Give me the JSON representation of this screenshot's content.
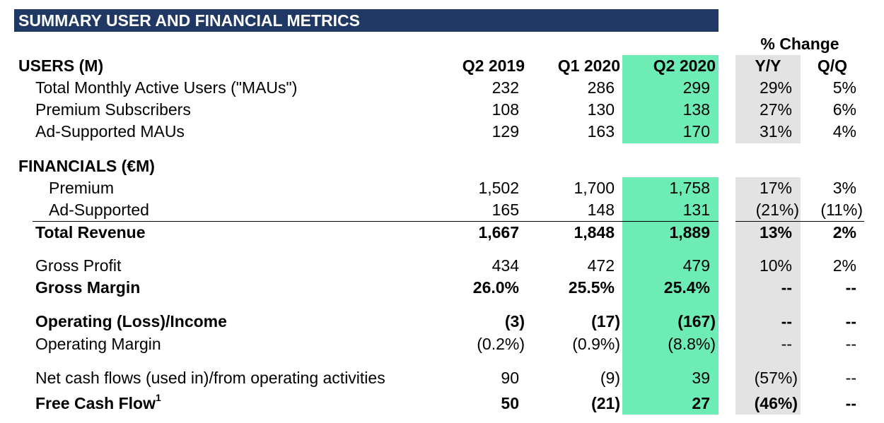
{
  "title": "SUMMARY USER AND FINANCIAL METRICS",
  "pct_change_header": "% Change",
  "headers": {
    "section_users": "USERS (M)",
    "q2_2019": "Q2 2019",
    "q1_2020": "Q1 2020",
    "q2_2020": "Q2 2020",
    "yy": "Y/Y",
    "qq": "Q/Q"
  },
  "users_rows": [
    {
      "label": "Total Monthly Active Users (\"MAUs\")",
      "q2_2019": "232",
      "q1_2020": "286",
      "q2_2020": "299",
      "yy": "29%",
      "qq": "5%"
    },
    {
      "label": "Premium Subscribers",
      "q2_2019": "108",
      "q1_2020": "130",
      "q2_2020": "138",
      "yy": "27%",
      "qq": "6%"
    },
    {
      "label": "Ad-Supported MAUs",
      "q2_2019": "129",
      "q1_2020": "163",
      "q2_2020": "170",
      "yy": "31%",
      "qq": "4%"
    }
  ],
  "financials_header": "FINANCIALS (€M)",
  "financial_rows": [
    {
      "label": "Premium",
      "q2_2019": "1,502",
      "q1_2020": "1,700",
      "q2_2020": "1,758",
      "yy": "17%",
      "qq": "3%"
    },
    {
      "label": "Ad-Supported",
      "q2_2019": "165",
      "q1_2020": "148",
      "q2_2020": "131",
      "yy": "(21%)",
      "qq": "(11%)"
    },
    {
      "label": "Total Revenue",
      "q2_2019": "1,667",
      "q1_2020": "1,848",
      "q2_2020": "1,889",
      "yy": "13%",
      "qq": "2%"
    },
    {
      "label": "Gross Profit",
      "q2_2019": "434",
      "q1_2020": "472",
      "q2_2020": "479",
      "yy": "10%",
      "qq": "2%"
    },
    {
      "label": "Gross Margin",
      "q2_2019": "26.0%",
      "q1_2020": "25.5%",
      "q2_2020": "25.4%",
      "yy": "--",
      "qq": "--"
    },
    {
      "label": "Operating (Loss)/Income",
      "q2_2019": "(3)",
      "q1_2020": "(17)",
      "q2_2020": "(167)",
      "yy": "--",
      "qq": "--"
    },
    {
      "label": "Operating Margin",
      "q2_2019": "(0.2%)",
      "q1_2020": "(0.9%)",
      "q2_2020": "(8.8%)",
      "yy": "--",
      "qq": "--"
    },
    {
      "label": "Net cash flows (used in)/from operating activities",
      "q2_2019": "90",
      "q1_2020": "(9)",
      "q2_2020": "39",
      "yy": "(57%)",
      "qq": "--"
    },
    {
      "label": "Free Cash Flow",
      "footnote": "1",
      "q2_2019": "50",
      "q1_2020": "(21)",
      "q2_2020": "27",
      "yy": "(46%)",
      "qq": "--"
    }
  ],
  "colors": {
    "title_bg": "#1f3864",
    "highlight_col": "#6eecb6",
    "pct_col": "#e3e3e3"
  }
}
